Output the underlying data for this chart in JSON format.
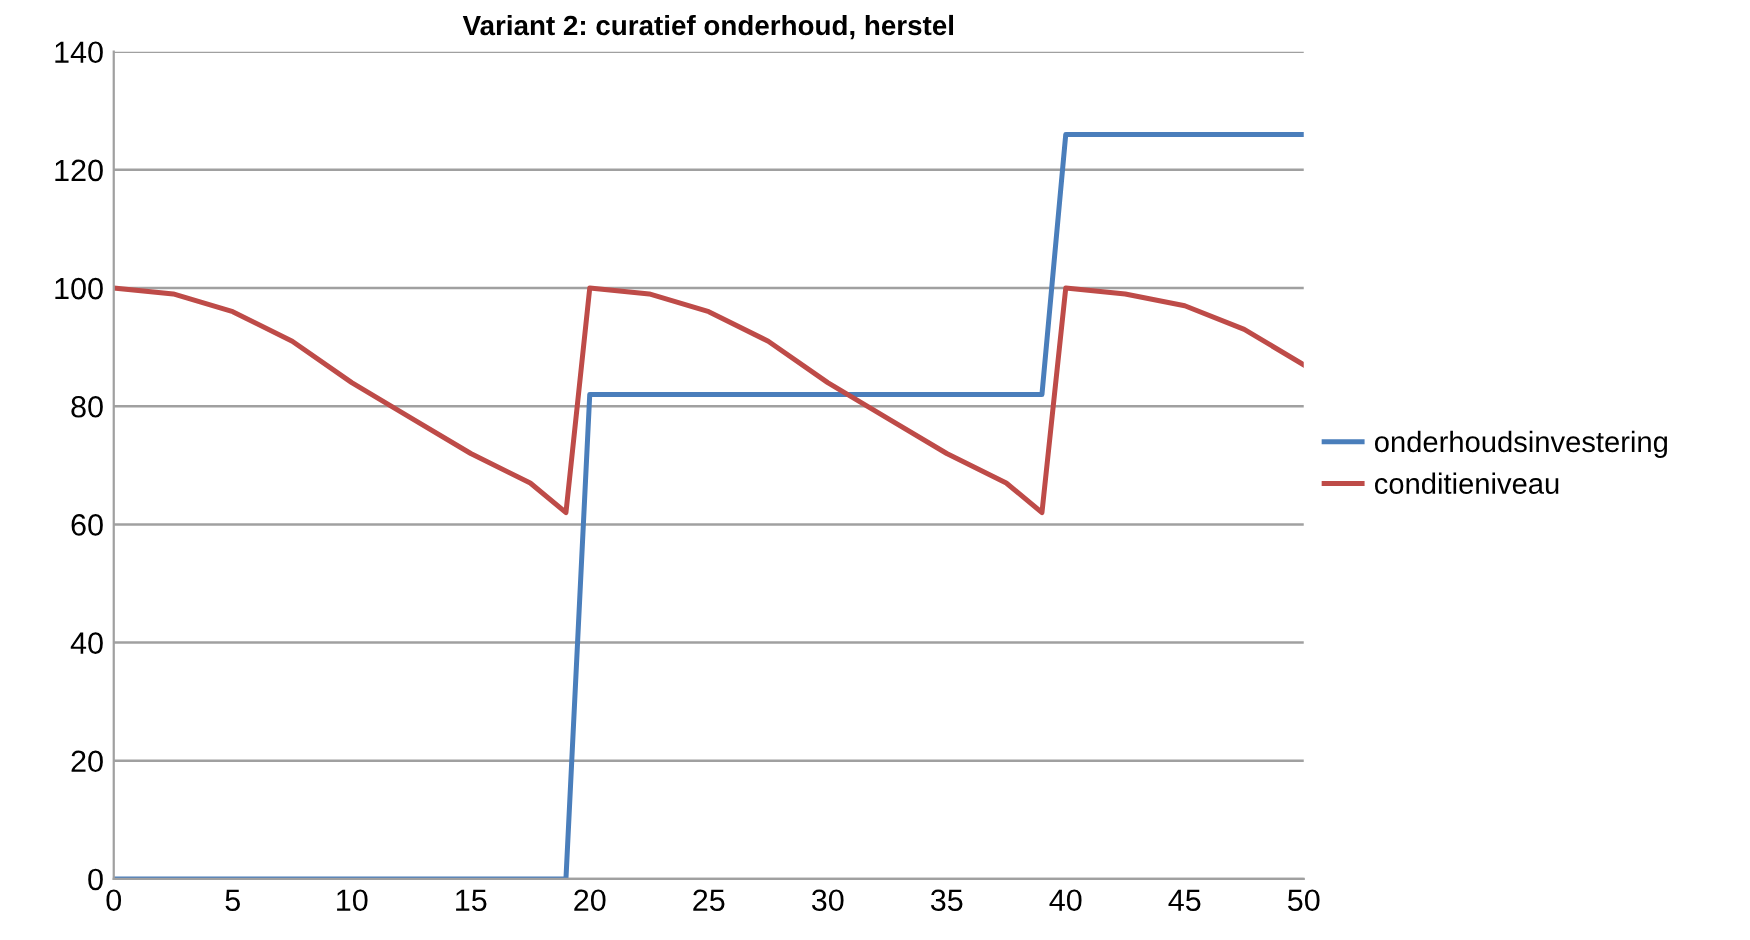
{
  "chart_data": {
    "type": "line",
    "title": "Variant 2: curatief onderhoud, herstel",
    "series": [
      {
        "name": "onderhoudsinvestering",
        "color": "#4a7ebb",
        "x": [
          0,
          19,
          20,
          39,
          40,
          50
        ],
        "values": [
          0,
          0,
          82,
          82,
          126,
          126
        ]
      },
      {
        "name": "conditieniveau",
        "color": "#be4b48",
        "x": [
          0,
          2.5,
          5,
          7.5,
          10,
          12.5,
          15,
          17.5,
          19,
          20,
          22.5,
          25,
          27.5,
          30,
          32.5,
          35,
          37.5,
          39,
          40,
          42.5,
          45,
          47.5,
          50
        ],
        "values": [
          100,
          99,
          96,
          91,
          84,
          78,
          72,
          67,
          62,
          100,
          99,
          96,
          91,
          84,
          78,
          72,
          67,
          62,
          100,
          99,
          97,
          93,
          87
        ]
      }
    ],
    "xlim": [
      0,
      50
    ],
    "xticks": [
      0,
      5,
      10,
      15,
      20,
      25,
      30,
      35,
      40,
      45,
      50
    ],
    "ylim": [
      0,
      140
    ],
    "yticks": [
      0,
      20,
      40,
      60,
      80,
      100,
      120,
      140
    ],
    "grid": "y",
    "legend": "right",
    "marker": "none",
    "line_style": "solid"
  }
}
